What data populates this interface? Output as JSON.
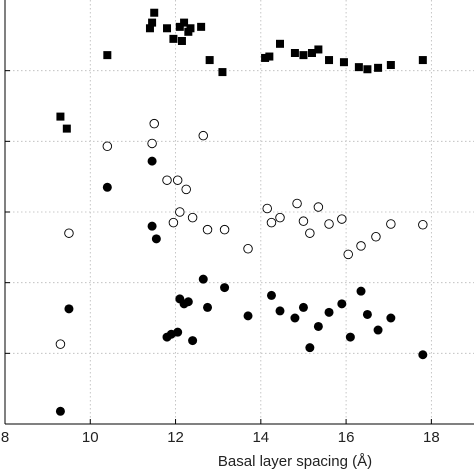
{
  "chart_data": {
    "type": "scatter",
    "title": "",
    "xlabel": "Basal layer spacing (Å)",
    "ylabel": "",
    "xlim": [
      8,
      19
    ],
    "ylim": [
      0,
      6
    ],
    "x_ticks": [
      8,
      10,
      12,
      14,
      16,
      18
    ],
    "x_tick_labels": [
      "8",
      "10",
      "12",
      "14",
      "16",
      "18"
    ],
    "y_ticks": [
      1,
      2,
      3,
      4,
      5
    ],
    "grid": true,
    "legend": "none",
    "series": [
      {
        "marker": "filled-square",
        "color": "#000000",
        "points": [
          [
            9.3,
            4.35
          ],
          [
            9.45,
            4.18
          ],
          [
            10.4,
            5.22
          ],
          [
            11.4,
            5.6
          ],
          [
            11.45,
            5.68
          ],
          [
            11.5,
            5.82
          ],
          [
            11.8,
            5.6
          ],
          [
            11.95,
            5.45
          ],
          [
            12.1,
            5.62
          ],
          [
            12.15,
            5.42
          ],
          [
            12.2,
            5.68
          ],
          [
            12.3,
            5.55
          ],
          [
            12.35,
            5.6
          ],
          [
            12.6,
            5.62
          ],
          [
            12.8,
            5.15
          ],
          [
            13.1,
            4.98
          ],
          [
            14.1,
            5.18
          ],
          [
            14.2,
            5.2
          ],
          [
            14.45,
            5.38
          ],
          [
            14.8,
            5.25
          ],
          [
            15.0,
            5.22
          ],
          [
            15.2,
            5.25
          ],
          [
            15.35,
            5.3
          ],
          [
            15.6,
            5.15
          ],
          [
            15.95,
            5.12
          ],
          [
            16.3,
            5.05
          ],
          [
            16.5,
            5.02
          ],
          [
            16.75,
            5.04
          ],
          [
            17.05,
            5.08
          ],
          [
            17.8,
            5.15
          ]
        ]
      },
      {
        "marker": "open-circle",
        "color": "#000000",
        "points": [
          [
            9.3,
            1.13
          ],
          [
            9.5,
            2.7
          ],
          [
            10.4,
            3.93
          ],
          [
            11.45,
            3.97
          ],
          [
            11.5,
            4.25
          ],
          [
            11.8,
            3.45
          ],
          [
            11.95,
            2.85
          ],
          [
            12.05,
            3.45
          ],
          [
            12.1,
            3.0
          ],
          [
            12.25,
            3.32
          ],
          [
            12.4,
            2.92
          ],
          [
            12.65,
            4.08
          ],
          [
            12.75,
            2.75
          ],
          [
            13.15,
            2.75
          ],
          [
            13.7,
            2.48
          ],
          [
            14.15,
            3.05
          ],
          [
            14.25,
            2.85
          ],
          [
            14.45,
            2.92
          ],
          [
            14.85,
            3.12
          ],
          [
            15.0,
            2.87
          ],
          [
            15.15,
            2.7
          ],
          [
            15.35,
            3.07
          ],
          [
            15.6,
            2.83
          ],
          [
            15.9,
            2.9
          ],
          [
            16.05,
            2.4
          ],
          [
            16.35,
            2.52
          ],
          [
            16.7,
            2.65
          ],
          [
            17.05,
            2.83
          ],
          [
            17.8,
            2.82
          ]
        ]
      },
      {
        "marker": "filled-circle",
        "color": "#000000",
        "points": [
          [
            9.3,
            0.18
          ],
          [
            9.5,
            1.63
          ],
          [
            10.4,
            3.35
          ],
          [
            11.45,
            3.72
          ],
          [
            11.45,
            2.8
          ],
          [
            11.55,
            2.62
          ],
          [
            11.8,
            1.23
          ],
          [
            11.9,
            1.27
          ],
          [
            12.05,
            1.3
          ],
          [
            12.1,
            1.77
          ],
          [
            12.2,
            1.7
          ],
          [
            12.3,
            1.73
          ],
          [
            12.4,
            1.18
          ],
          [
            12.65,
            2.05
          ],
          [
            12.75,
            1.65
          ],
          [
            13.15,
            1.93
          ],
          [
            13.7,
            1.53
          ],
          [
            14.25,
            1.82
          ],
          [
            14.45,
            1.6
          ],
          [
            14.8,
            1.5
          ],
          [
            15.0,
            1.65
          ],
          [
            15.15,
            1.08
          ],
          [
            15.35,
            1.38
          ],
          [
            15.6,
            1.58
          ],
          [
            15.9,
            1.7
          ],
          [
            16.1,
            1.23
          ],
          [
            16.35,
            1.88
          ],
          [
            16.5,
            1.55
          ],
          [
            16.75,
            1.33
          ],
          [
            17.05,
            1.5
          ],
          [
            17.8,
            0.98
          ]
        ]
      }
    ]
  }
}
